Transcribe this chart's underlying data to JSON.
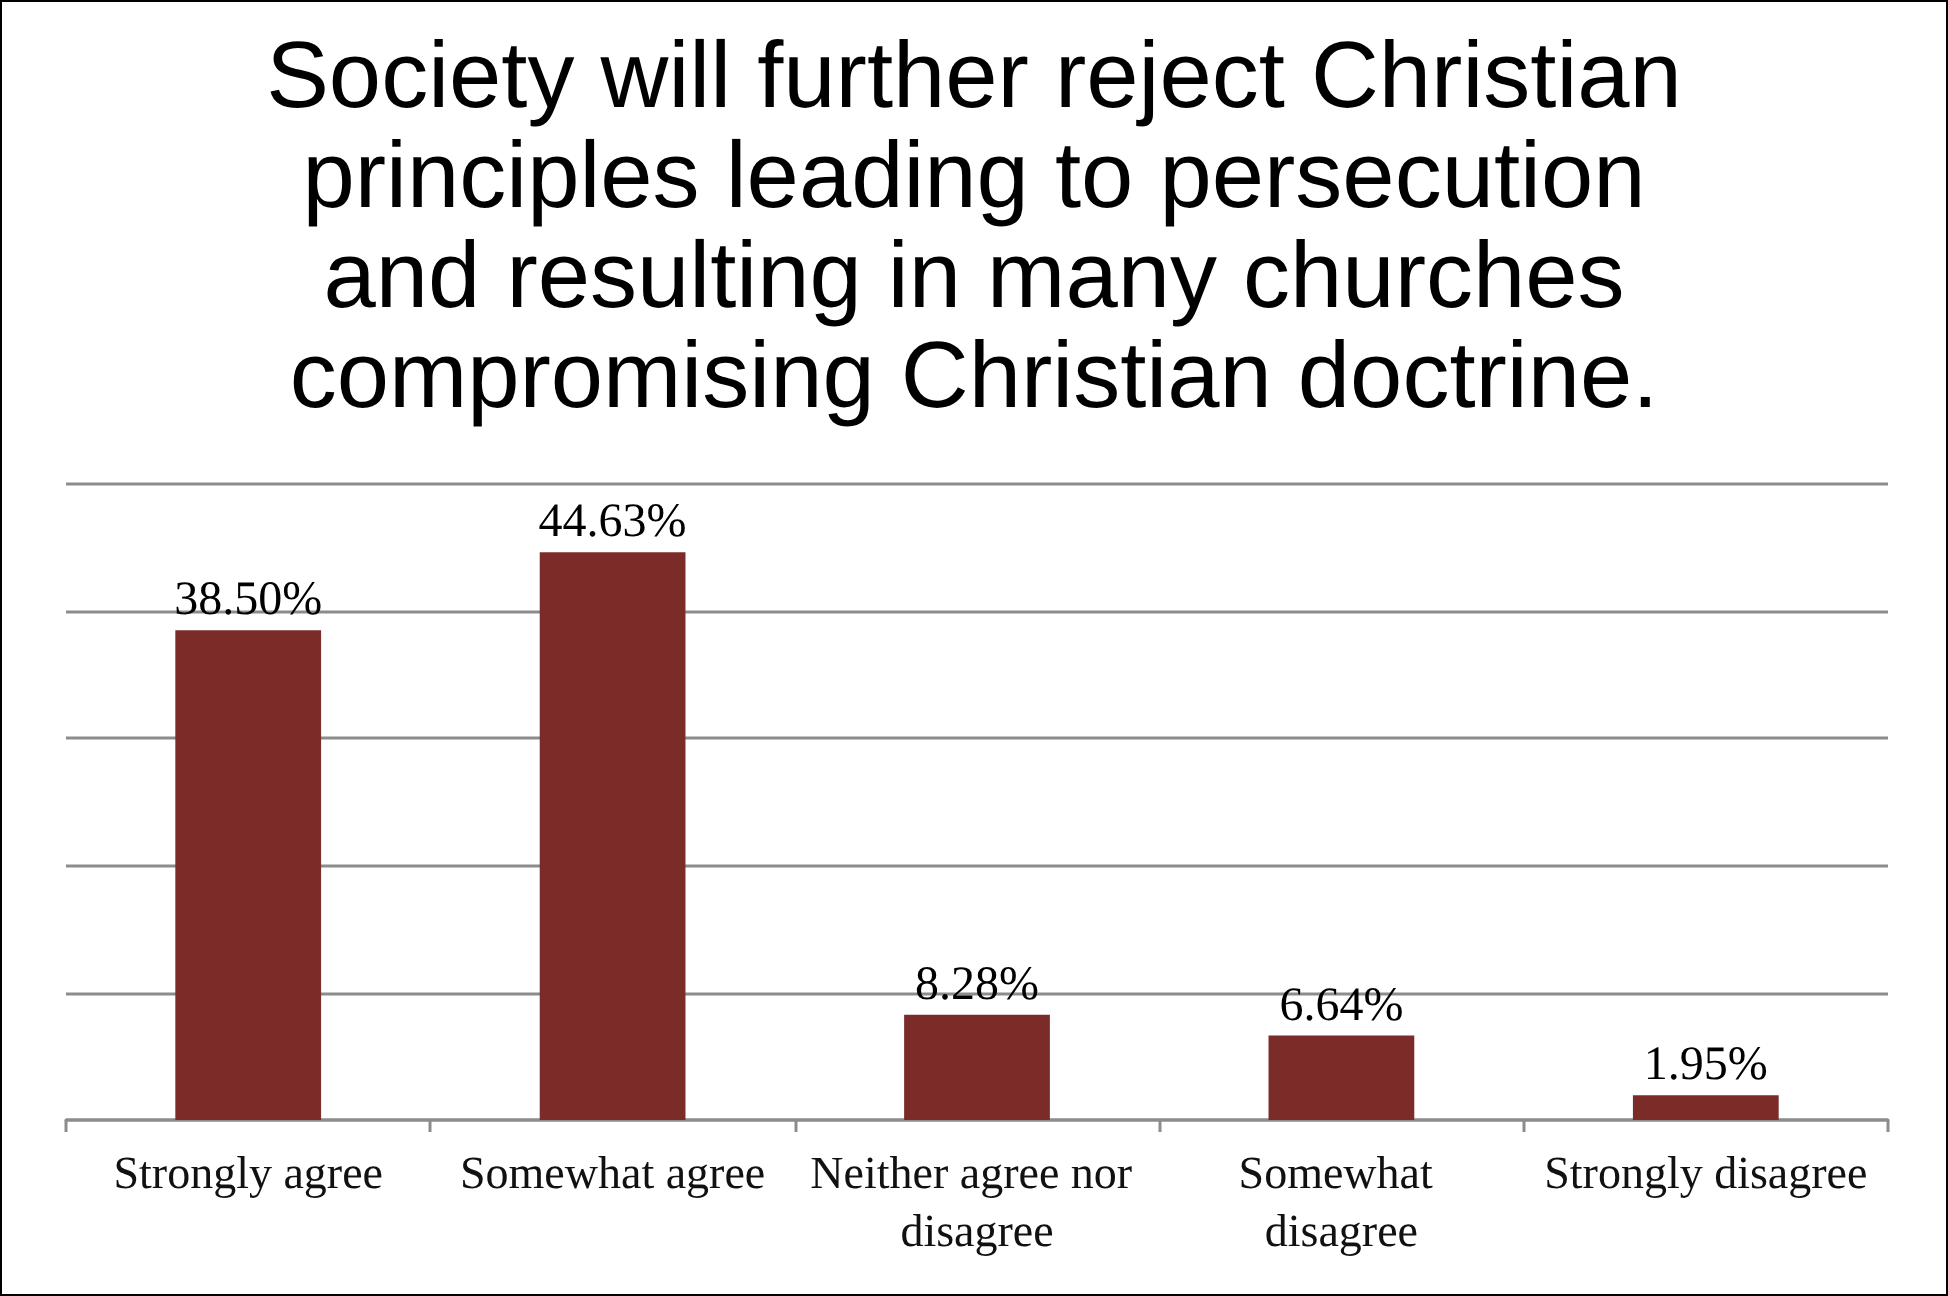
{
  "chart_data": {
    "type": "bar",
    "title": "Society will further reject Christian\nprinciples leading to persecution\nand resulting in many churches\ncompromising Christian doctrine.",
    "categories": [
      "Strongly agree",
      "Somewhat agree",
      "Neither agree nor disagree",
      "Somewhat disagree",
      "Strongly disagree"
    ],
    "values": [
      38.5,
      44.63,
      8.28,
      6.64,
      1.95
    ],
    "value_labels": [
      "38.50%",
      "44.63%",
      "8.28%",
      "6.64%",
      "1.95%"
    ],
    "color": "#7b2c29",
    "ylim": [
      0,
      50
    ],
    "yticks": [
      {
        "value": 0,
        "label": null
      },
      {
        "value": 10,
        "label": null
      },
      {
        "value": 20,
        "label": null
      },
      {
        "value": 30,
        "label": null
      },
      {
        "value": 40,
        "label": null
      },
      {
        "value": 50,
        "label": null
      }
    ],
    "grid": "y",
    "tick_labels": "x"
  }
}
